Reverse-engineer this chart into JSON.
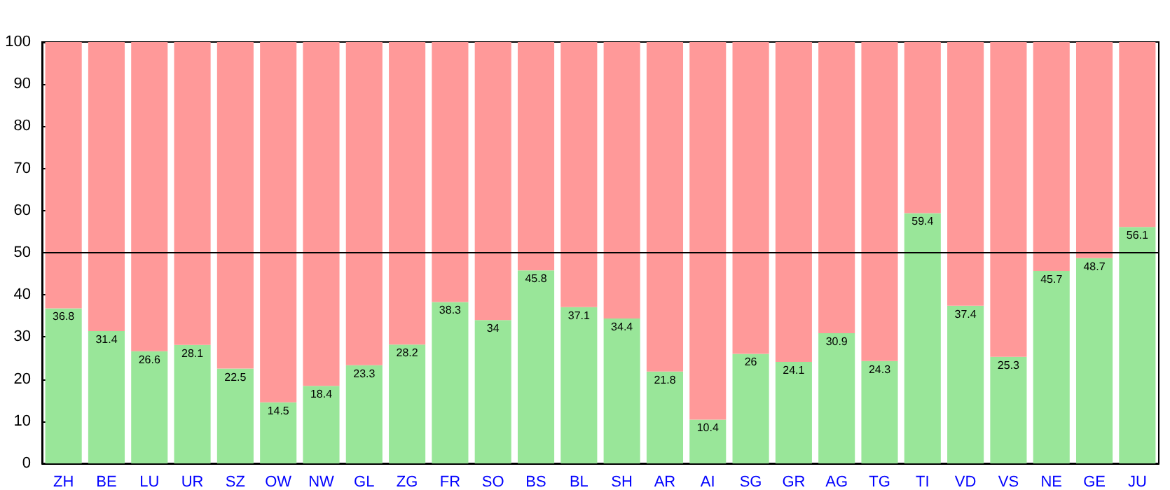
{
  "chart_data": {
    "type": "bar",
    "stacked": true,
    "categories": [
      "ZH",
      "BE",
      "LU",
      "UR",
      "SZ",
      "OW",
      "NW",
      "GL",
      "ZG",
      "FR",
      "SO",
      "BS",
      "BL",
      "SH",
      "AR",
      "AI",
      "SG",
      "GR",
      "AG",
      "TG",
      "TI",
      "VD",
      "VS",
      "NE",
      "GE",
      "JU"
    ],
    "series": [
      {
        "color": "#99e699",
        "values": [
          36.8,
          31.4,
          26.6,
          28.1,
          22.5,
          14.5,
          18.4,
          23.3,
          28.2,
          38.3,
          34,
          45.8,
          37.1,
          34.4,
          21.8,
          10.4,
          26,
          24.1,
          30.9,
          24.3,
          59.4,
          37.4,
          25.3,
          45.7,
          48.7,
          56.1
        ],
        "value_labels": [
          "36.8",
          "31.4",
          "26.6",
          "28.1",
          "22.5",
          "14.5",
          "18.4",
          "23.3",
          "28.2",
          "38.3",
          "34",
          "45.8",
          "37.1",
          "34.4",
          "21.8",
          "10.4",
          "26",
          "24.1",
          "30.9",
          "24.3",
          "59.4",
          "37.4",
          "25.3",
          "45.7",
          "48.7",
          "56.1"
        ]
      },
      {
        "color": "#ff9999",
        "values": [
          63.2,
          68.6,
          73.4,
          71.9,
          77.5,
          85.5,
          81.6,
          76.7,
          71.8,
          61.7,
          66,
          54.2,
          62.9,
          65.6,
          78.2,
          89.6,
          74,
          75.9,
          69.1,
          75.7,
          40.6,
          62.6,
          74.7,
          54.3,
          51.3,
          43.9
        ]
      }
    ],
    "ylim": [
      0,
      100
    ],
    "yticks": [
      0,
      10,
      20,
      30,
      40,
      50,
      60,
      70,
      80,
      90,
      100
    ],
    "grid": false,
    "ref_lines": [
      {
        "axis": "y",
        "value": 50,
        "color": "#000000"
      }
    ]
  }
}
